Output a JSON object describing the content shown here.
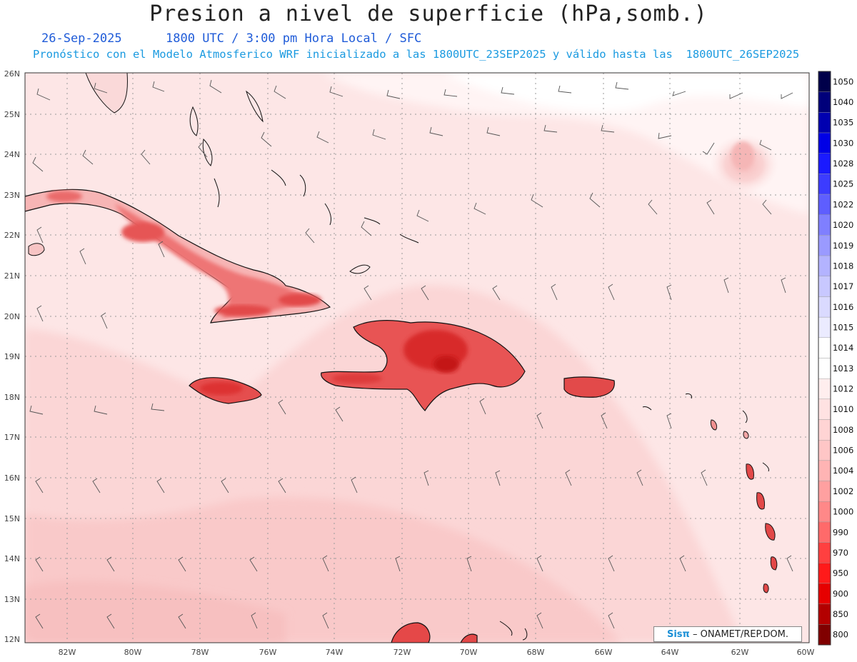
{
  "header": {
    "title": "Presion a nivel de superficie (hPa,somb.)",
    "date": "26-Sep-2025",
    "time_info": "1800 UTC / 3:00 pm Hora Local / SFC",
    "model_info": "Pronóstico con el Modelo Atmosferico WRF inicializado a las 1800UTC_23SEP2025 y válido hasta las  1800UTC_26SEP2025"
  },
  "axes": {
    "lon_labels": [
      "82W",
      "80W",
      "78W",
      "76W",
      "74W",
      "72W",
      "70W",
      "68W",
      "66W",
      "64W",
      "62W",
      "60W"
    ],
    "lat_labels": [
      "26N",
      "25N",
      "24N",
      "23N",
      "22N",
      "21N",
      "20N",
      "19N",
      "18N",
      "17N",
      "16N",
      "15N",
      "14N",
      "13N",
      "12N"
    ]
  },
  "colorbar": {
    "levels": [
      "1050",
      "1040",
      "1035",
      "1030",
      "1028",
      "1025",
      "1022",
      "1020",
      "1019",
      "1018",
      "1017",
      "1016",
      "1015",
      "1014",
      "1013",
      "1012",
      "1010",
      "1008",
      "1006",
      "1004",
      "1002",
      "1000",
      "990",
      "970",
      "950",
      "900",
      "850",
      "800"
    ],
    "colors": [
      "#00004a",
      "#00007a",
      "#0000b0",
      "#0000e6",
      "#1a1aff",
      "#3c3cff",
      "#5e5eff",
      "#7f7fff",
      "#9a9aff",
      "#b3b3ff",
      "#c8c8ff",
      "#dadaff",
      "#ebebff",
      "#ffffff",
      "#ffffff",
      "#ffeeee",
      "#ffe2e2",
      "#ffd4d4",
      "#ffc6c6",
      "#ffb4b4",
      "#ffa0a0",
      "#ff8888",
      "#ff6a6a",
      "#ff4040",
      "#ff1a1a",
      "#e60000",
      "#b30000",
      "#800000"
    ]
  },
  "credit": {
    "brand": "Sisπ",
    "text": "– ONAMET/REP.DOM."
  }
}
